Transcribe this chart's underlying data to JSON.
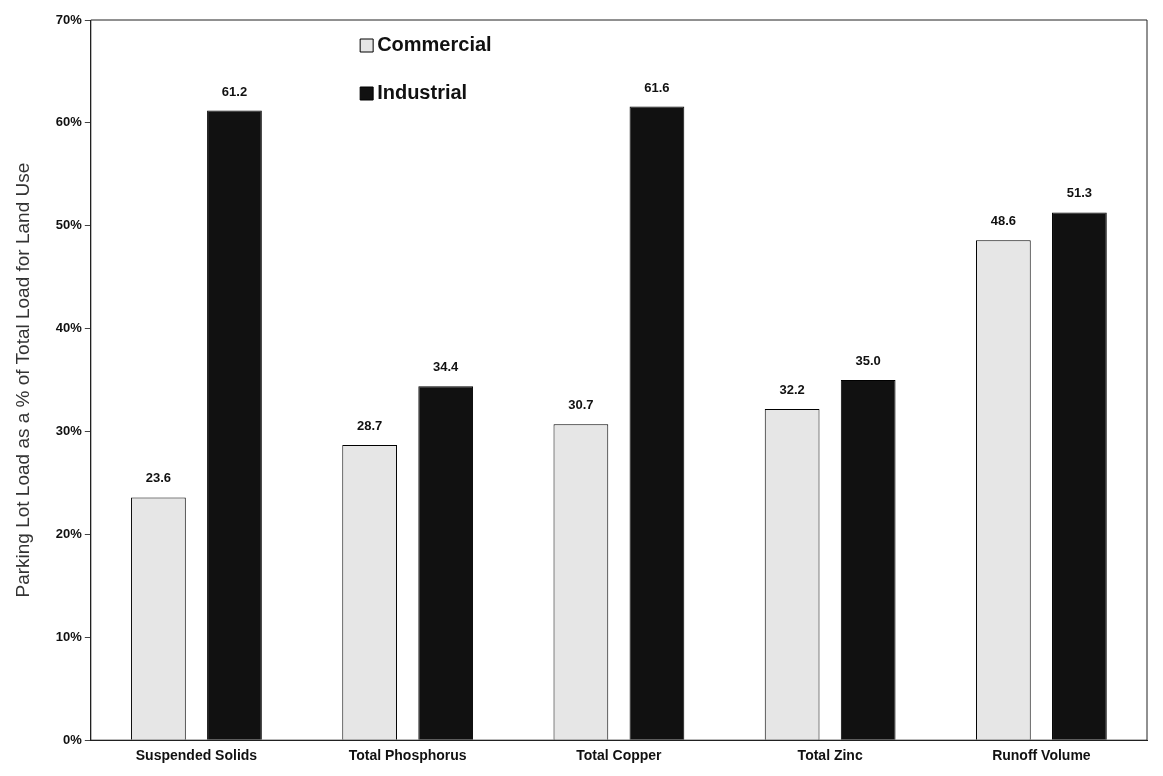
{
  "chart_data": {
    "type": "bar",
    "ylabel": "Parking Lot Load as a % of Total Load for Land Use",
    "categories": [
      "Suspended Solids",
      "Total Phosphorus",
      "Total Copper",
      "Total Zinc",
      "Runoff Volume"
    ],
    "series": [
      {
        "name": "Commercial",
        "color": "#e6e6e6",
        "values": [
          23.6,
          28.7,
          30.7,
          32.2,
          48.6
        ]
      },
      {
        "name": "Industrial",
        "color": "#111111",
        "values": [
          61.2,
          34.4,
          61.6,
          35.0,
          51.3
        ]
      }
    ],
    "value_labels": [
      [
        "23.6",
        "28.7",
        "30.7",
        "32.2",
        "48.6"
      ],
      [
        "61.2",
        "34.4",
        "61.6",
        "35.0",
        "51.3"
      ]
    ],
    "ylim": [
      0,
      70
    ],
    "yticks": [
      {
        "value": 0,
        "label": "0%"
      },
      {
        "value": 10,
        "label": "10%"
      },
      {
        "value": 20,
        "label": "20%"
      },
      {
        "value": 30,
        "label": "30%"
      },
      {
        "value": 40,
        "label": "40%"
      },
      {
        "value": 50,
        "label": "50%"
      },
      {
        "value": 60,
        "label": "60%"
      },
      {
        "value": 70,
        "label": "70%"
      }
    ],
    "grid": false,
    "legend": "top"
  }
}
